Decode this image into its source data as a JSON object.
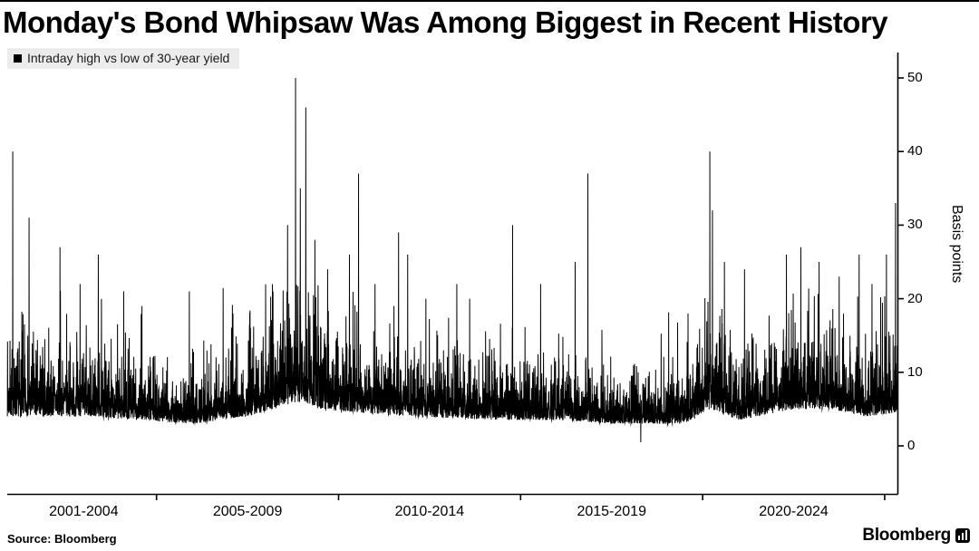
{
  "page": {
    "title": "Monday's Bond Whipsaw Was Among Biggest in Recent History",
    "source_label": "Source: Bloomberg",
    "brand": "Bloomberg"
  },
  "legend": {
    "label": "Intraday high vs low of 30-year yield"
  },
  "colors": {
    "series": "#000000",
    "axis": "#000000",
    "legend_bg": "#ececec"
  },
  "chart_data": {
    "type": "line",
    "title": "Monday's Bond Whipsaw Was Among Biggest in Recent History",
    "series_name": "Intraday high vs low of 30-year yield",
    "xlabel": "",
    "ylabel": "Basis points",
    "units": "basis points",
    "grid": false,
    "legend_position": "top-left",
    "y_axis_side": "right",
    "ylim": [
      0,
      50
    ],
    "y_ticks": [
      0,
      10,
      20,
      30,
      40,
      50
    ],
    "x_range": [
      2000.9,
      2025.35
    ],
    "x_tick_labels": [
      "2001-2004",
      "2005-2009",
      "2010-2014",
      "2015-2019",
      "2020-2024"
    ],
    "x_tick_centers": [
      2003,
      2007.5,
      2012.5,
      2017.5,
      2022.5
    ],
    "x_boundaries": [
      2005,
      2010,
      2015,
      2020,
      2025
    ],
    "spikes": [
      [
        2001.05,
        40
      ],
      [
        2001.5,
        31
      ],
      [
        2002.35,
        27
      ],
      [
        2002.9,
        22
      ],
      [
        2003.4,
        26
      ],
      [
        2004.1,
        21
      ],
      [
        2004.6,
        19
      ],
      [
        2005.9,
        21
      ],
      [
        2007.1,
        18
      ],
      [
        2008.2,
        21
      ],
      [
        2008.6,
        30
      ],
      [
        2008.82,
        50
      ],
      [
        2008.95,
        35
      ],
      [
        2009.1,
        46
      ],
      [
        2009.35,
        28
      ],
      [
        2009.7,
        24
      ],
      [
        2010.3,
        26
      ],
      [
        2010.55,
        37
      ],
      [
        2011.0,
        22
      ],
      [
        2011.65,
        29
      ],
      [
        2011.9,
        26
      ],
      [
        2012.4,
        20
      ],
      [
        2013.25,
        22
      ],
      [
        2013.6,
        20
      ],
      [
        2014.78,
        30
      ],
      [
        2015.55,
        22
      ],
      [
        2016.5,
        25
      ],
      [
        2016.85,
        37
      ],
      [
        2018.3,
        0.5
      ],
      [
        2019.6,
        18
      ],
      [
        2020.2,
        40
      ],
      [
        2020.27,
        32
      ],
      [
        2020.6,
        25
      ],
      [
        2021.15,
        24
      ],
      [
        2022.3,
        26
      ],
      [
        2022.7,
        27
      ],
      [
        2023.2,
        25
      ],
      [
        2023.75,
        23
      ],
      [
        2024.3,
        26
      ],
      [
        2024.65,
        22
      ],
      [
        2025.05,
        26
      ],
      [
        2025.3,
        33
      ]
    ],
    "generation": {
      "seed": 7,
      "points_per_year": 252,
      "envelope": [
        [
          2000.9,
          4.0,
          6.0
        ],
        [
          2003.0,
          4.0,
          6.0
        ],
        [
          2004.5,
          3.5,
          5.0
        ],
        [
          2006.0,
          3.0,
          4.5
        ],
        [
          2007.5,
          4.0,
          6.0
        ],
        [
          2008.9,
          6.0,
          10.0
        ],
        [
          2009.5,
          5.0,
          8.0
        ],
        [
          2010.5,
          4.5,
          7.0
        ],
        [
          2012.0,
          4.0,
          6.0
        ],
        [
          2014.5,
          3.5,
          5.0
        ],
        [
          2016.0,
          3.5,
          5.5
        ],
        [
          2017.5,
          3.0,
          4.0
        ],
        [
          2019.5,
          3.0,
          4.5
        ],
        [
          2020.2,
          5.0,
          9.0
        ],
        [
          2021.0,
          3.5,
          5.0
        ],
        [
          2022.5,
          5.0,
          7.0
        ],
        [
          2023.5,
          5.0,
          7.0
        ],
        [
          2024.5,
          4.0,
          6.0
        ],
        [
          2025.35,
          4.5,
          6.0
        ]
      ]
    }
  }
}
